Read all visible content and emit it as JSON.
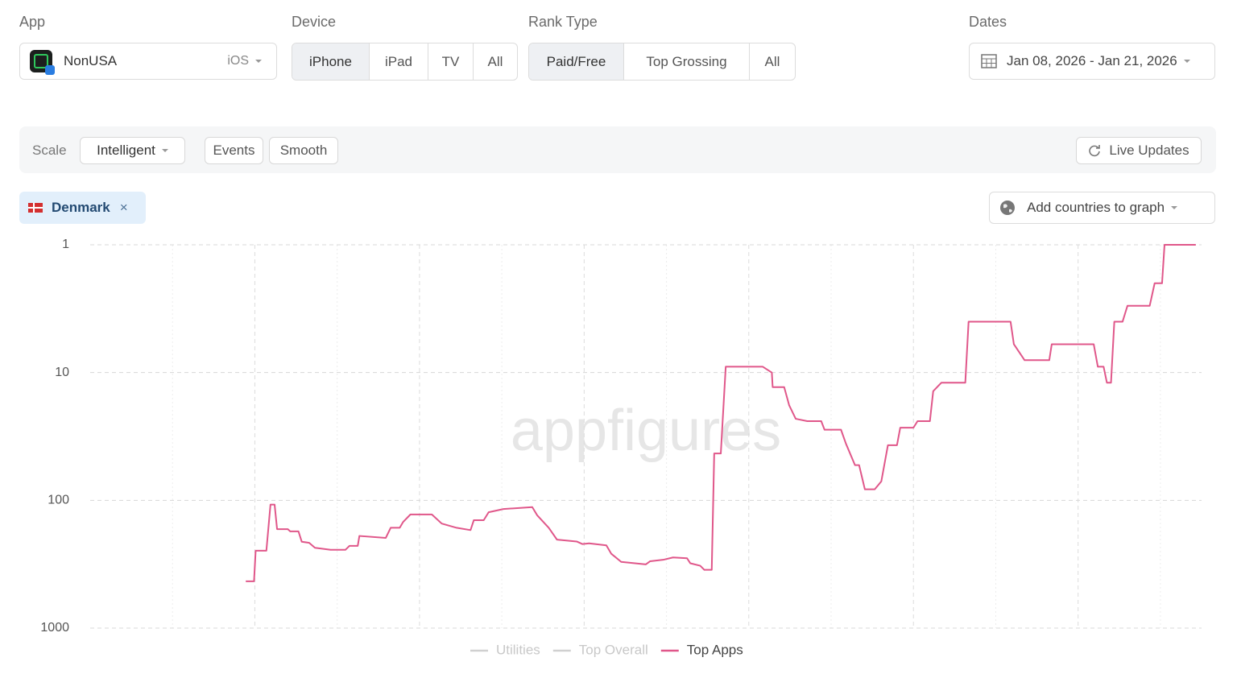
{
  "filters": {
    "app": {
      "label": "App",
      "name": "NonUSA",
      "platform": "iOS"
    },
    "device": {
      "label": "Device",
      "options": [
        "iPhone",
        "iPad",
        "TV",
        "All"
      ],
      "selected": 0
    },
    "rank_type": {
      "label": "Rank Type",
      "options": [
        "Paid/Free",
        "Top Grossing",
        "All"
      ],
      "selected": 0
    },
    "dates": {
      "label": "Dates",
      "value": "Jan 08, 2026 - Jan 21, 2026"
    }
  },
  "toolbar": {
    "scale_label": "Scale",
    "scale_value": "Intelligent",
    "buttons": [
      "Events",
      "Smooth"
    ],
    "live_updates": "Live Updates"
  },
  "countries": {
    "selected": [
      "Denmark"
    ],
    "add": "Add countries to graph"
  },
  "watermark": "appfigures",
  "chart_data": {
    "type": "line",
    "log_scale": true,
    "grid": true,
    "ylim": [
      1000,
      1
    ],
    "yticks": [
      1,
      10,
      100,
      1000
    ],
    "xlim": [
      0,
      13.5
    ],
    "x": [
      1.89,
      1.99,
      2.01,
      2.14,
      2.19,
      2.24,
      2.27,
      2.4,
      2.43,
      2.53,
      2.57,
      2.66,
      2.73,
      2.92,
      3.1,
      3.15,
      3.25,
      3.27,
      3.59,
      3.65,
      3.76,
      3.8,
      3.89,
      4.15,
      4.27,
      4.45,
      4.62,
      4.66,
      4.78,
      4.84,
      5.02,
      5.37,
      5.43,
      5.57,
      5.67,
      5.91,
      5.98,
      6.06,
      6.27,
      6.33,
      6.45,
      6.75,
      6.8,
      6.96,
      7.08,
      7.25,
      7.29,
      7.41,
      7.46,
      7.55,
      7.58,
      7.66,
      7.72,
      8.17,
      8.28,
      8.29,
      8.43,
      8.49,
      8.57,
      8.71,
      8.88,
      8.92,
      9.12,
      9.18,
      9.29,
      9.34,
      9.41,
      9.53,
      9.61,
      9.69,
      9.8,
      9.84,
      10.0,
      10.05,
      10.2,
      10.24,
      10.34,
      10.63,
      10.67,
      11.18,
      11.22,
      11.35,
      11.65,
      11.68,
      12.19,
      12.24,
      12.31,
      12.35,
      12.4,
      12.44,
      12.54,
      12.6,
      12.87,
      12.93,
      13.02,
      13.05,
      13.43
    ],
    "series": [
      {
        "name": "Utilities",
        "color": "#d0d0d0",
        "hidden": true
      },
      {
        "name": "Top Overall",
        "color": "#d0d0d0",
        "hidden": true
      },
      {
        "name": "Top Apps",
        "color": "#e0578a",
        "hidden": false,
        "values": [
          430,
          430,
          248,
          248,
          108,
          108,
          168,
          168,
          175,
          175,
          211,
          215,
          235,
          244,
          244,
          227,
          227,
          190,
          197,
          164,
          164,
          148,
          129,
          129,
          152,
          164,
          171,
          143,
          143,
          124,
          117,
          113,
          131,
          164,
          203,
          210,
          220,
          217,
          225,
          262,
          303,
          317,
          300,
          292,
          280,
          284,
          311,
          325,
          350,
          350,
          43,
          43,
          9,
          9,
          10,
          13,
          13,
          18,
          23,
          24,
          24,
          28,
          28,
          36,
          53,
          53,
          82,
          82,
          71,
          37,
          37,
          27,
          27,
          24,
          24,
          14,
          12,
          12,
          4,
          4,
          6,
          8,
          8,
          6,
          6,
          9,
          9,
          12,
          12,
          4,
          4,
          3,
          3,
          2,
          2,
          1,
          1
        ]
      }
    ]
  }
}
